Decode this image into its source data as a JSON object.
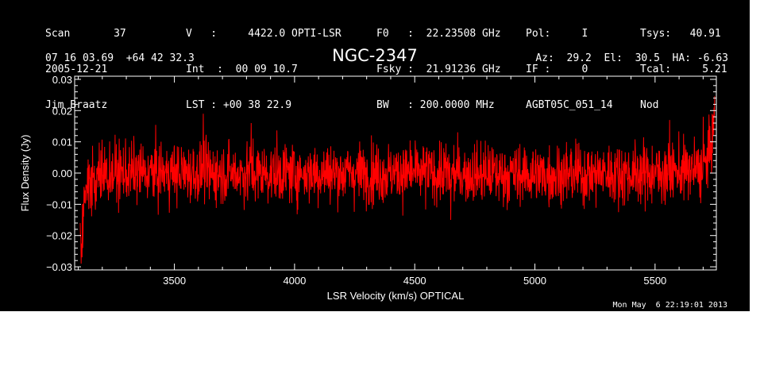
{
  "header": {
    "col1": [
      "Scan       37",
      "2005-12-21",
      "Jim Braatz"
    ],
    "col2": [
      "V   :     4422.0 OPTI-LSR",
      "Int  :  00 09 10.7",
      "LST : +00 38 22.9"
    ],
    "col3": [
      "F0   :  22.23508 GHz",
      "Fsky :  21.91236 GHz",
      "BW   : 200.0000 MHz"
    ],
    "col4": [
      "Pol:     I",
      "IF :     0",
      "AGBT05C_051_14"
    ],
    "col5": [
      "Tsys:   40.91",
      "Tcal:     5.21",
      "Nod"
    ],
    "position": "07 16 03.69  +64 42 32.3",
    "source": "NGC-2347",
    "azel": "Az:  29.2  El:  30.5  HA: -6.63"
  },
  "footer": {
    "datestamp": "Mon May  6 22:19:01 2013"
  },
  "colors": {
    "background": "#000000",
    "axes": "#ffffff",
    "trace": "#ff0000"
  },
  "chart_data": {
    "type": "line",
    "xlabel": "LSR Velocity (km/s) OPTICAL",
    "ylabel": "Flux Density (Jy)",
    "xlim": [
      3085,
      5755
    ],
    "ylim": [
      -0.031,
      0.031
    ],
    "xticks": [
      3500,
      4000,
      4500,
      5000,
      5500
    ],
    "xtick_labels": [
      "3500",
      "4000",
      "4500",
      "5000",
      "5500"
    ],
    "yticks": [
      -0.03,
      -0.02,
      -0.01,
      0.0,
      0.01,
      0.02,
      0.03
    ],
    "ytick_labels": [
      "−0.03",
      "−0.02",
      "−0.01",
      "0.00",
      "0.01",
      "0.02",
      "0.03"
    ],
    "grid": false,
    "series": [
      {
        "color": "#ff0000",
        "x_start": 3108,
        "x_end": 5748,
        "noise_rms": 0.0048,
        "baseline": [
          [
            3108,
            -0.014
          ],
          [
            3115,
            -0.022
          ],
          [
            3125,
            -0.01
          ],
          [
            3140,
            -0.003
          ],
          [
            3200,
            0.0
          ],
          [
            3500,
            0.0
          ],
          [
            4000,
            0.0
          ],
          [
            4500,
            0.0
          ],
          [
            5000,
            -0.0005
          ],
          [
            5500,
            0.0
          ],
          [
            5700,
            0.001
          ],
          [
            5725,
            0.006
          ],
          [
            5740,
            0.012
          ],
          [
            5748,
            0.016
          ]
        ],
        "extremes": [
          [
            3112,
            -0.029
          ],
          [
            3118,
            -0.024
          ],
          [
            3620,
            0.019
          ],
          [
            3820,
            0.016
          ],
          [
            4650,
            -0.015
          ],
          [
            5560,
            0.017
          ],
          [
            5700,
            0.018
          ],
          [
            5746,
            0.021
          ]
        ]
      }
    ]
  }
}
